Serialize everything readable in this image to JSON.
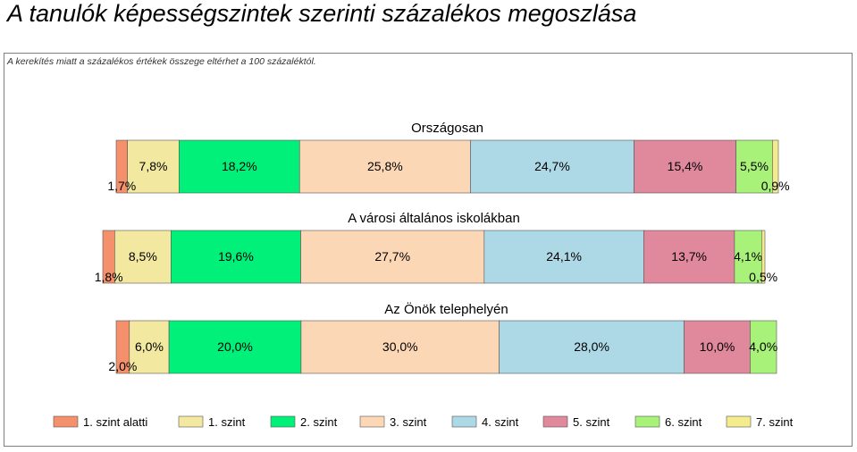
{
  "page": {
    "title": "A tanulók képességszintek szerinti százalékos megoszlása",
    "note": "A kerekítés miatt a  százalékos értékek összege eltérhet a 100 százaléktól."
  },
  "chart_data": {
    "type": "bar",
    "orientation": "horizontal-stacked-100",
    "categories": [
      "1. szint alatti",
      "1. szint",
      "2. szint",
      "3. szint",
      "4. szint",
      "5. szint",
      "6. szint",
      "7. szint"
    ],
    "colors": [
      "#f4906c",
      "#f2e8a0",
      "#00f07a",
      "#fcd7b6",
      "#add8e6",
      "#e0889c",
      "#a8f27a",
      "#f4ec8c"
    ],
    "groups": [
      {
        "title": "Országosan",
        "values": [
          1.7,
          7.8,
          18.2,
          25.8,
          24.7,
          15.4,
          5.5,
          0.9
        ],
        "labels": [
          "1,7%",
          "7,8%",
          "18,2%",
          "25,8%",
          "24,7%",
          "15,4%",
          "5,5%",
          "0,9%"
        ]
      },
      {
        "title": "A városi általános iskolákban",
        "values": [
          1.8,
          8.5,
          19.6,
          27.7,
          24.1,
          13.7,
          4.1,
          0.5
        ],
        "labels": [
          "1,8%",
          "8,5%",
          "19,6%",
          "27,7%",
          "24,1%",
          "13,7%",
          "4,1%",
          "0,5%"
        ]
      },
      {
        "title": "Az Önök telephelyén",
        "values": [
          2.0,
          6.0,
          20.0,
          30.0,
          28.0,
          10.0,
          4.0,
          0.0
        ],
        "labels": [
          "2,0%",
          "6,0%",
          "20,0%",
          "30,0%",
          "28,0%",
          "10,0%",
          "4,0%",
          ""
        ]
      }
    ],
    "legend": {
      "position": "bottom",
      "labels": [
        "1. szint alatti",
        "1. szint",
        "2. szint",
        "3. szint",
        "4. szint",
        "5. szint",
        "6. szint",
        "7. szint"
      ]
    }
  }
}
